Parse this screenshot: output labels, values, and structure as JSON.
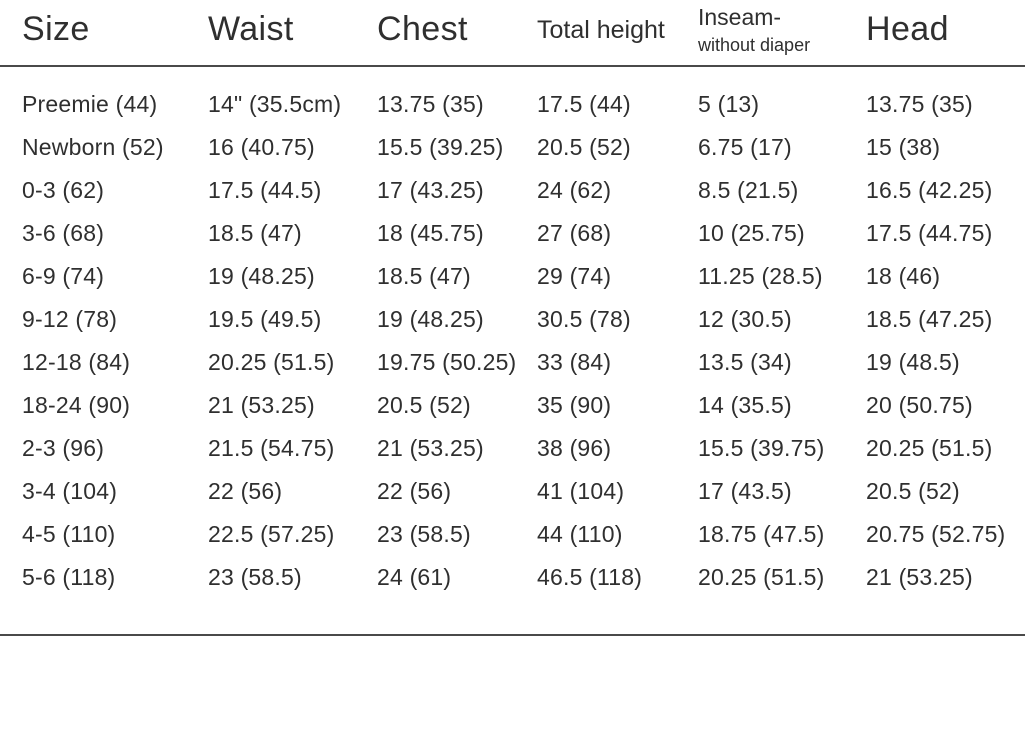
{
  "table": {
    "columns": [
      {
        "key": "size",
        "label": "Size"
      },
      {
        "key": "waist",
        "label": "Waist"
      },
      {
        "key": "chest",
        "label": "Chest"
      },
      {
        "key": "total_height",
        "label": "Total height"
      },
      {
        "key": "inseam",
        "label": "Inseam-",
        "label2": "without diaper"
      },
      {
        "key": "head",
        "label": "Head"
      }
    ],
    "rows": [
      [
        "Preemie (44)",
        "14\" (35.5cm)",
        "13.75 (35)",
        "17.5 (44)",
        "5 (13)",
        "13.75 (35)"
      ],
      [
        "Newborn (52)",
        "16 (40.75)",
        "15.5 (39.25)",
        "20.5 (52)",
        "6.75 (17)",
        "15 (38)"
      ],
      [
        "0-3 (62)",
        "17.5 (44.5)",
        "17 (43.25)",
        "24 (62)",
        "8.5 (21.5)",
        "16.5 (42.25)"
      ],
      [
        "3-6 (68)",
        "18.5 (47)",
        "18 (45.75)",
        "27 (68)",
        "10 (25.75)",
        "17.5 (44.75)"
      ],
      [
        "6-9 (74)",
        "19 (48.25)",
        "18.5 (47)",
        "29 (74)",
        "11.25 (28.5)",
        "18 (46)"
      ],
      [
        "9-12 (78)",
        "19.5 (49.5)",
        "19 (48.25)",
        "30.5 (78)",
        "12 (30.5)",
        "18.5 (47.25)"
      ],
      [
        "12-18 (84)",
        "20.25 (51.5)",
        "19.75 (50.25)",
        "33 (84)",
        "13.5 (34)",
        "19 (48.5)"
      ],
      [
        "18-24 (90)",
        "21 (53.25)",
        "20.5 (52)",
        "35 (90)",
        "14 (35.5)",
        "20 (50.75)"
      ],
      [
        "2-3 (96)",
        "21.5 (54.75)",
        "21 (53.25)",
        "38 (96)",
        "15.5 (39.75)",
        "20.25 (51.5)"
      ],
      [
        "3-4 (104)",
        "22 (56)",
        "22 (56)",
        "41 (104)",
        "17 (43.5)",
        "20.5 (52)"
      ],
      [
        "4-5 (110)",
        "22.5 (57.25)",
        "23 (58.5)",
        "44 (110)",
        "18.75 (47.5)",
        "20.75 (52.75)"
      ],
      [
        "5-6 (118)",
        "23 (58.5)",
        "24 (61)",
        "46.5 (118)",
        "20.25 (51.5)",
        "21 (53.25)"
      ]
    ],
    "colors": {
      "text": "#2f2f2f",
      "rule": "#4a4a4a",
      "background": "#ffffff"
    }
  }
}
